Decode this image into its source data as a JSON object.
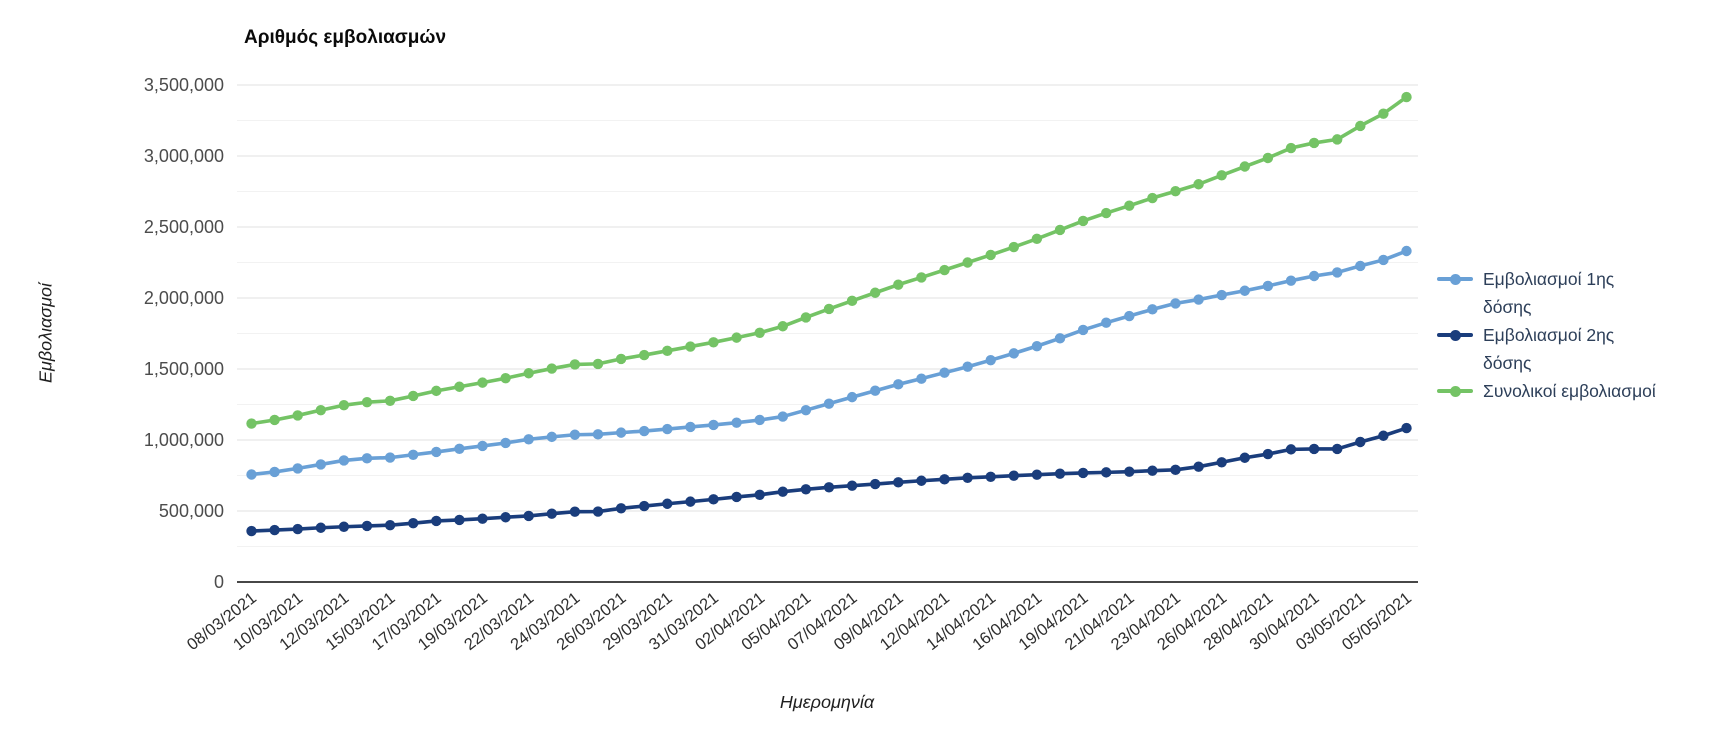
{
  "header": {
    "title": "Αριθμός εμβολιασμών"
  },
  "axes": {
    "y_title": "Εμβολιασμοί",
    "x_title": "Ημερομηνία",
    "y_tick_labels": [
      "0",
      "500,000",
      "1,000,000",
      "1,500,000",
      "2,000,000",
      "2,500,000",
      "3,000,000",
      "3,500,000"
    ]
  },
  "legend": {
    "items": [
      {
        "label": "Εμβολιασμοί 1ης δόσης",
        "label_lines": [
          "Εμβολιασμοί 1ης",
          "δόσης"
        ],
        "color": "#69a0d6"
      },
      {
        "label": "Εμβολιασμοί 2ης δόσης",
        "label_lines": [
          "Εμβολιασμοί 2ης",
          "δόσης"
        ],
        "color": "#1a3d7c"
      },
      {
        "label": "Συνολικοί εμβολιασμοί",
        "label_lines": [
          "Συνολικοί εμβολιασμοί"
        ],
        "color": "#74c365"
      }
    ],
    "position": "right"
  },
  "chart_data": {
    "type": "line",
    "title": "Αριθμός εμβολιασμών",
    "xlabel": "Ημερομηνία",
    "ylabel": "Εμβολιασμοί",
    "ylim": [
      0,
      3500000
    ],
    "y_tick_step": 500000,
    "y_minor_tick_step": 250000,
    "grid": true,
    "point_markers": true,
    "legend_position": "right",
    "x": [
      "08/03/2021",
      "09/03/2021",
      "10/03/2021",
      "11/03/2021",
      "12/03/2021",
      "13/03/2021",
      "15/03/2021",
      "16/03/2021",
      "17/03/2021",
      "18/03/2021",
      "19/03/2021",
      "20/03/2021",
      "22/03/2021",
      "23/03/2021",
      "24/03/2021",
      "25/03/2021",
      "26/03/2021",
      "27/03/2021",
      "29/03/2021",
      "30/03/2021",
      "31/03/2021",
      "01/04/2021",
      "02/04/2021",
      "03/04/2021",
      "05/04/2021",
      "06/04/2021",
      "07/04/2021",
      "08/04/2021",
      "09/04/2021",
      "10/04/2021",
      "12/04/2021",
      "13/04/2021",
      "14/04/2021",
      "15/04/2021",
      "16/04/2021",
      "17/04/2021",
      "19/04/2021",
      "20/04/2021",
      "21/04/2021",
      "22/04/2021",
      "23/04/2021",
      "24/04/2021",
      "26/04/2021",
      "27/04/2021",
      "28/04/2021",
      "29/04/2021",
      "30/04/2021",
      "01/05/2021",
      "03/05/2021",
      "04/05/2021",
      "05/05/2021"
    ],
    "x_tick_labels_shown": [
      "08/03/2021",
      "10/03/2021",
      "12/03/2021",
      "15/03/2021",
      "17/03/2021",
      "19/03/2021",
      "22/03/2021",
      "24/03/2021",
      "26/03/2021",
      "29/03/2021",
      "31/03/2021",
      "02/04/2021",
      "05/04/2021",
      "07/04/2021",
      "09/04/2021",
      "12/04/2021",
      "14/04/2021",
      "16/04/2021",
      "19/04/2021",
      "21/04/2021",
      "23/04/2021",
      "26/04/2021",
      "28/04/2021",
      "30/04/2021",
      "03/05/2021",
      "05/05/2021"
    ],
    "series": [
      {
        "name": "Εμβολιασμοί 1ης δόσης",
        "color": "#69a0d6",
        "values": [
          757000,
          775000,
          800000,
          828000,
          856000,
          871000,
          876000,
          896000,
          916000,
          938000,
          958000,
          979000,
          1005000,
          1022000,
          1037000,
          1040000,
          1052000,
          1063000,
          1077000,
          1092000,
          1106000,
          1122000,
          1141000,
          1165000,
          1210000,
          1256000,
          1302000,
          1347000,
          1392000,
          1432000,
          1474000,
          1516000,
          1562000,
          1610000,
          1661000,
          1716000,
          1775000,
          1826000,
          1873000,
          1920000,
          1962000,
          1989000,
          2021000,
          2051000,
          2085000,
          2122000,
          2155000,
          2180000,
          2226000,
          2268000,
          2331000
        ]
      },
      {
        "name": "Εμβολιασμοί 2ης δόσης",
        "color": "#1a3d7c",
        "values": [
          359000,
          366000,
          373000,
          382000,
          389000,
          395000,
          400000,
          414000,
          430000,
          437000,
          446000,
          456000,
          465000,
          481000,
          495000,
          496000,
          519000,
          535000,
          551000,
          566000,
          582000,
          599000,
          614000,
          636000,
          653000,
          667000,
          678000,
          690000,
          702000,
          713000,
          723000,
          734000,
          741000,
          749000,
          756000,
          763000,
          768000,
          772000,
          777000,
          784000,
          790000,
          812000,
          843000,
          875000,
          901000,
          934000,
          937000,
          937000,
          986000,
          1030000,
          1084000
        ]
      },
      {
        "name": "Συνολικοί εμβολιασμοί",
        "color": "#74c365",
        "values": [
          1116000,
          1141000,
          1173000,
          1210000,
          1245000,
          1266000,
          1276000,
          1310000,
          1346000,
          1375000,
          1404000,
          1435000,
          1470000,
          1503000,
          1532000,
          1536000,
          1571000,
          1598000,
          1628000,
          1658000,
          1688000,
          1721000,
          1755000,
          1801000,
          1863000,
          1923000,
          1980000,
          2037000,
          2094000,
          2145000,
          2197000,
          2250000,
          2303000,
          2359000,
          2417000,
          2479000,
          2543000,
          2598000,
          2650000,
          2704000,
          2752000,
          2801000,
          2864000,
          2926000,
          2986000,
          3056000,
          3092000,
          3117000,
          3212000,
          3298000,
          3415000
        ]
      }
    ]
  }
}
